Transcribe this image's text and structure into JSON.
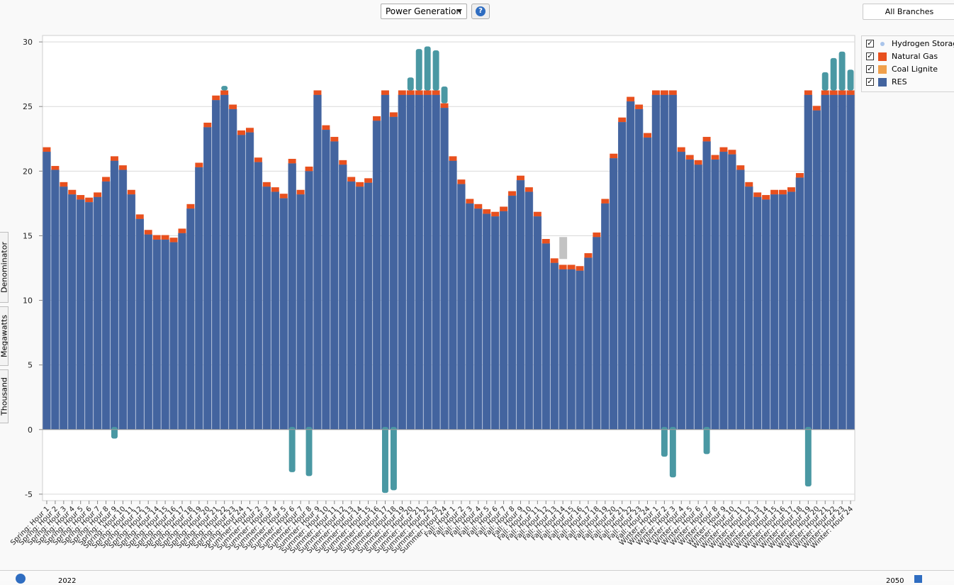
{
  "toolbar": {
    "view_select": "Power Generation",
    "help_label": "?",
    "branch_button": "All Branches"
  },
  "side_tabs": [
    "Denominator",
    "Megawatts",
    "Thousand"
  ],
  "legend": {
    "items": [
      {
        "label": "Hydrogen Storage",
        "color": "#a9c4ea",
        "marker": "dot",
        "checked": true
      },
      {
        "label": "Natural  Gas",
        "color": "#e8501e",
        "marker": "square",
        "checked": true
      },
      {
        "label": "Coal  Lignite",
        "color": "#f0a04b",
        "marker": "square",
        "checked": true
      },
      {
        "label": "RES",
        "color": "#43649f",
        "marker": "square",
        "checked": true
      }
    ]
  },
  "bottom_bar": {
    "left_year": "2022",
    "right_year": "2050"
  },
  "chart_data": {
    "type": "bar",
    "stacked": true,
    "ylim": [
      -5.5,
      30.5
    ],
    "yticks": [
      -5,
      0,
      5,
      10,
      15,
      20,
      25,
      30
    ],
    "grid": true,
    "legend_position": "top-right",
    "categories": [
      "Spring: Hour 1",
      "Spring: Hour 2",
      "Spring: Hour 3",
      "Spring: Hour 4",
      "Spring: Hour 5",
      "Spring: Hour 6",
      "Spring: Hour 7",
      "Spring: Hour 8",
      "Spring: Hour 9",
      "Spring: Hour 10",
      "Spring: Hour 11",
      "Spring: Hour 12",
      "Spring: Hour 13",
      "Spring: Hour 14",
      "Spring: Hour 15",
      "Spring: Hour 16",
      "Spring: Hour 17",
      "Spring: Hour 18",
      "Spring: Hour 19",
      "Spring: Hour 20",
      "Spring: Hour 21",
      "Spring: Hour 22",
      "Spring: Hour 23",
      "Spring: Hour 24",
      "Summer: Hour 1",
      "Summer: Hour 2",
      "Summer: Hour 3",
      "Summer: Hour 4",
      "Summer: Hour 5",
      "Summer: Hour 6",
      "Summer: Hour 7",
      "Summer: Hour 8",
      "Summer: Hour 9",
      "Summer: Hour 10",
      "Summer: Hour 11",
      "Summer: Hour 12",
      "Summer: Hour 13",
      "Summer: Hour 14",
      "Summer: Hour 15",
      "Summer: Hour 16",
      "Summer: Hour 17",
      "Summer: Hour 18",
      "Summer: Hour 19",
      "Summer: Hour 20",
      "Summer: Hour 21",
      "Summer: Hour 22",
      "Summer: Hour 23",
      "Summer: Hour 24",
      "Fall: Hour 1",
      "Fall: Hour 2",
      "Fall: Hour 3",
      "Fall: Hour 4",
      "Fall: Hour 5",
      "Fall: Hour 6",
      "Fall: Hour 7",
      "Fall: Hour 8",
      "Fall: Hour 9",
      "Fall: Hour 10",
      "Fall: Hour 11",
      "Fall: Hour 12",
      "Fall: Hour 13",
      "Fall: Hour 14",
      "Fall: Hour 15",
      "Fall: Hour 16",
      "Fall: Hour 17",
      "Fall: Hour 18",
      "Fall: Hour 19",
      "Fall: Hour 20",
      "Fall: Hour 21",
      "Fall: Hour 22",
      "Fall: Hour 23",
      "Fall: Hour 24",
      "Winter: Hour 1",
      "Winter: Hour 2",
      "Winter: Hour 3",
      "Winter: Hour 4",
      "Winter: Hour 5",
      "Winter: Hour 6",
      "Winter: Hour 7",
      "Winter: Hour 8",
      "Winter: Hour 9",
      "Winter: Hour 10",
      "Winter: Hour 11",
      "Winter: Hour 12",
      "Winter: Hour 13",
      "Winter: Hour 14",
      "Winter: Hour 15",
      "Winter: Hour 16",
      "Winter: Hour 17",
      "Winter: Hour 18",
      "Winter: Hour 19",
      "Winter: Hour 20",
      "Winter: Hour 21",
      "Winter: Hour 22",
      "Winter: Hour 23",
      "Winter: Hour 24"
    ],
    "series": [
      {
        "name": "RES",
        "color": "#43649f",
        "values": [
          21.5,
          20.1,
          18.8,
          18.2,
          17.8,
          17.6,
          18.0,
          19.2,
          20.8,
          20.1,
          18.2,
          16.3,
          15.1,
          14.7,
          14.7,
          14.5,
          15.2,
          17.1,
          20.3,
          23.4,
          25.5,
          25.9,
          24.8,
          22.8,
          23.0,
          20.7,
          18.8,
          18.4,
          17.9,
          20.6,
          18.2,
          20.0,
          25.9,
          23.2,
          22.3,
          20.5,
          19.2,
          18.8,
          19.1,
          23.9,
          25.9,
          24.2,
          25.9,
          25.9,
          25.9,
          25.9,
          25.9,
          24.9,
          20.8,
          19.0,
          17.5,
          17.1,
          16.7,
          16.5,
          16.9,
          18.1,
          19.3,
          18.4,
          16.5,
          14.4,
          12.9,
          12.4,
          12.4,
          12.3,
          13.3,
          14.9,
          17.5,
          21.0,
          23.8,
          25.4,
          24.8,
          22.6,
          25.9,
          25.9,
          25.9,
          21.5,
          20.9,
          20.5,
          22.3,
          20.9,
          21.5,
          21.3,
          20.1,
          18.8,
          18.0,
          17.8,
          18.2,
          18.2,
          18.4,
          19.5,
          25.9,
          24.7,
          25.9,
          25.9,
          25.9,
          25.9
        ]
      },
      {
        "name": "Natural  Gas",
        "color": "#e8501e",
        "values": [
          0.35,
          0.3,
          0.35,
          0.35,
          0.35,
          0.35,
          0.35,
          0.35,
          0.35,
          0.35,
          0.35,
          0.35,
          0.35,
          0.35,
          0.35,
          0.35,
          0.35,
          0.35,
          0.35,
          0.35,
          0.35,
          0.35,
          0.35,
          0.35,
          0.35,
          0.35,
          0.35,
          0.35,
          0.35,
          0.35,
          0.35,
          0.35,
          0.35,
          0.35,
          0.35,
          0.35,
          0.35,
          0.35,
          0.35,
          0.35,
          0.35,
          0.35,
          0.35,
          0.35,
          0.35,
          0.35,
          0.35,
          0.35,
          0.35,
          0.35,
          0.35,
          0.35,
          0.35,
          0.35,
          0.35,
          0.35,
          0.35,
          0.35,
          0.35,
          0.35,
          0.35,
          0.35,
          0.35,
          0.35,
          0.35,
          0.35,
          0.35,
          0.35,
          0.35,
          0.35,
          0.35,
          0.35,
          0.35,
          0.35,
          0.35,
          0.35,
          0.35,
          0.35,
          0.35,
          0.35,
          0.35,
          0.35,
          0.35,
          0.35,
          0.35,
          0.35,
          0.35,
          0.35,
          0.35,
          0.35,
          0.35,
          0.35,
          0.35,
          0.35,
          0.35,
          0.35
        ]
      },
      {
        "name": "Hydrogen Storage",
        "color": "#4a98a3",
        "values": [
          0,
          0,
          0,
          0,
          0,
          0,
          0,
          0,
          -0.7,
          0,
          0,
          0,
          0,
          0,
          0,
          0,
          0,
          0,
          0,
          0,
          0,
          0.35,
          0,
          0,
          0,
          0,
          0,
          0,
          0,
          -3.3,
          0,
          -3.6,
          0,
          0,
          0,
          0,
          0,
          0,
          0,
          0,
          -4.9,
          -4.7,
          0,
          1.0,
          3.2,
          3.4,
          3.1,
          1.3,
          0,
          0,
          0,
          0,
          0,
          0,
          0,
          0,
          0,
          0,
          0,
          0,
          0,
          0,
          0,
          0,
          0,
          0,
          0,
          0,
          0,
          0,
          0,
          0,
          0,
          -2.1,
          -3.7,
          0,
          0,
          0,
          -1.9,
          0,
          0,
          0,
          0,
          0,
          0,
          0,
          0,
          0,
          0,
          0,
          -4.4,
          0,
          1.4,
          2.5,
          3.0,
          1.6
        ]
      }
    ],
    "highlight_note": "selected hover region around Fall: Hour 13",
    "highlight": {
      "category_index": 61,
      "y_from": 13.2,
      "y_to": 14.9,
      "color": "#c3c3c3"
    }
  }
}
